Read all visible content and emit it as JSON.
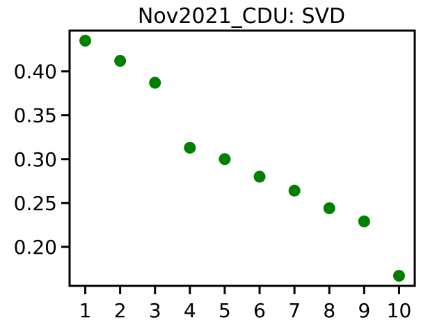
{
  "chart_data": {
    "type": "scatter",
    "title": "Nov2021_CDU: SVD",
    "xlabel": "",
    "ylabel": "",
    "x": [
      1,
      2,
      3,
      4,
      5,
      6,
      7,
      8,
      9,
      10
    ],
    "y": [
      0.435,
      0.412,
      0.387,
      0.313,
      0.3,
      0.28,
      0.264,
      0.244,
      0.229,
      0.167
    ],
    "x_ticks": [
      "1",
      "2",
      "3",
      "4",
      "5",
      "6",
      "7",
      "8",
      "9",
      "10"
    ],
    "y_ticks": [
      "0.20",
      "0.25",
      "0.30",
      "0.35",
      "0.40"
    ],
    "xlim": [
      0.55,
      10.45
    ],
    "ylim": [
      0.1555,
      0.4465
    ],
    "grid": false,
    "marker_color": "#008000"
  }
}
